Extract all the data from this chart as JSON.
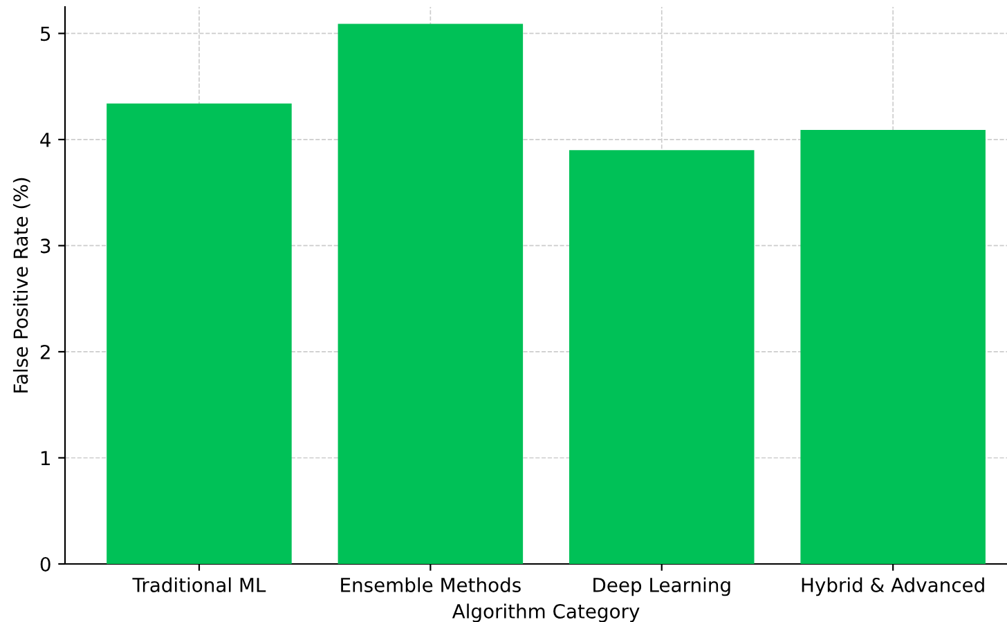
{
  "chart_data": {
    "type": "bar",
    "xlabel": "Algorithm Category",
    "ylabel": "False Positive Rate (%)",
    "categories": [
      "Traditional ML",
      "Ensemble Methods",
      "Deep Learning",
      "Hybrid & Advanced"
    ],
    "values": [
      4.34,
      5.09,
      3.9,
      4.09
    ],
    "color": "#00c157",
    "ylim": [
      0,
      5.25
    ],
    "yticks": [
      0,
      1,
      2,
      3,
      4,
      5
    ],
    "grid": true
  }
}
